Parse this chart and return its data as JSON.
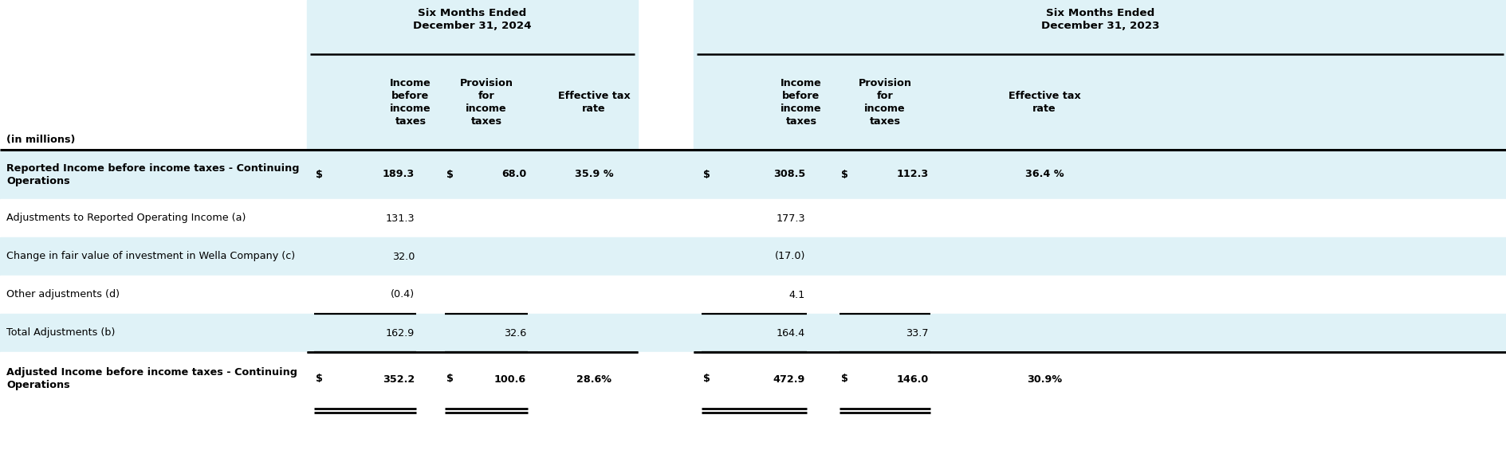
{
  "header_group_1": "Six Months Ended\nDecember 31, 2024",
  "header_group_2": "Six Months Ended\nDecember 31, 2023",
  "col_headers": [
    "(in millions)",
    "Income\nbefore\nincome\ntaxes",
    "Provision\nfor\nincome\ntaxes",
    "Effective tax\nrate",
    "Income\nbefore\nincome\ntaxes",
    "Provision\nfor\nincome\ntaxes",
    "Effective tax\nrate"
  ],
  "rows": [
    {
      "label": "Reported Income before income taxes - Continuing\nOperations",
      "bold": true,
      "bg": "#dff2f7",
      "c1_dollar": "$",
      "c1": "189.3",
      "c2_dollar": "$",
      "c2": "68.0",
      "c3": "35.9 %",
      "c4_dollar": "$",
      "c4": "308.5",
      "c5_dollar": "$",
      "c5": "112.3",
      "c6": "36.4 %",
      "border_top": true,
      "border_bot_single": false,
      "border_bot_double": false
    },
    {
      "label": "Adjustments to Reported Operating Income (a)",
      "bold": false,
      "bg": "#ffffff",
      "c1_dollar": "",
      "c1": "131.3",
      "c2_dollar": "",
      "c2": "",
      "c3": "",
      "c4_dollar": "",
      "c4": "177.3",
      "c5_dollar": "",
      "c5": "",
      "c6": "",
      "border_top": false,
      "border_bot_single": false,
      "border_bot_double": false
    },
    {
      "label": "Change in fair value of investment in Wella Company (c)",
      "bold": false,
      "bg": "#dff2f7",
      "c1_dollar": "",
      "c1": "32.0",
      "c2_dollar": "",
      "c2": "",
      "c3": "",
      "c4_dollar": "",
      "c4": "(17.0)",
      "c5_dollar": "",
      "c5": "",
      "c6": "",
      "border_top": false,
      "border_bot_single": false,
      "border_bot_double": false
    },
    {
      "label": "Other adjustments (d)",
      "bold": false,
      "bg": "#ffffff",
      "c1_dollar": "",
      "c1": "(0.4)",
      "c2_dollar": "",
      "c2": "",
      "c3": "",
      "c4_dollar": "",
      "c4": "4.1",
      "c5_dollar": "",
      "c5": "",
      "c6": "",
      "border_top": false,
      "border_bot_single": true,
      "border_bot_double": false
    },
    {
      "label": "Total Adjustments (b)",
      "bold": false,
      "bg": "#dff2f7",
      "c1_dollar": "",
      "c1": "162.9",
      "c2_dollar": "",
      "c2": "32.6",
      "c3": "",
      "c4_dollar": "",
      "c4": "164.4",
      "c5_dollar": "",
      "c5": "33.7",
      "c6": "",
      "border_top": false,
      "border_bot_single": true,
      "border_bot_double": false
    },
    {
      "label": "Adjusted Income before income taxes - Continuing\nOperations",
      "bold": true,
      "bg": "#ffffff",
      "c1_dollar": "$",
      "c1": "352.2",
      "c2_dollar": "$",
      "c2": "100.6",
      "c3": "28.6%",
      "c4_dollar": "$",
      "c4": "472.9",
      "c5_dollar": "$",
      "c5": "146.0",
      "c6": "30.9%",
      "border_top": true,
      "border_bot_single": false,
      "border_bot_double": true
    }
  ],
  "bg_color": "#ffffff",
  "light_blue": "#dff2f7",
  "black": "#000000",
  "font_size": 9.2,
  "bold_font_size": 9.2
}
